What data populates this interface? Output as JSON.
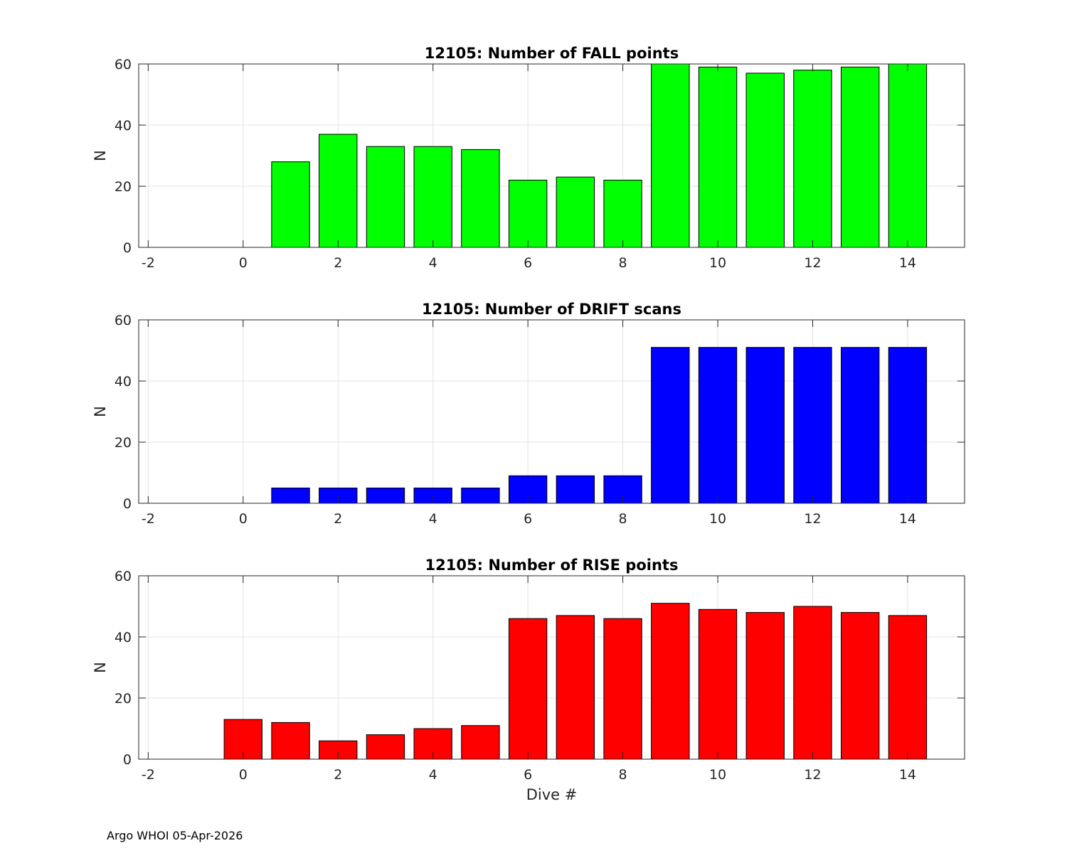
{
  "chart_data": [
    {
      "type": "bar",
      "title": "12105: Number of FALL points",
      "xlabel": "",
      "ylabel": "N",
      "x": [
        1,
        2,
        3,
        4,
        5,
        6,
        7,
        8,
        9,
        10,
        11,
        12,
        13,
        14
      ],
      "values": [
        28,
        37,
        33,
        33,
        32,
        22,
        23,
        22,
        60,
        59,
        57,
        58,
        59,
        60
      ],
      "color": "#00ff00",
      "xlim": [
        -2.2,
        15.2
      ],
      "ylim": [
        0,
        60
      ],
      "xticks": [
        -2,
        0,
        2,
        4,
        6,
        8,
        10,
        12,
        14
      ],
      "yticks": [
        0,
        20,
        40,
        60
      ],
      "grid": true
    },
    {
      "type": "bar",
      "title": "12105: Number of DRIFT scans",
      "xlabel": "",
      "ylabel": "N",
      "x": [
        1,
        2,
        3,
        4,
        5,
        6,
        7,
        8,
        9,
        10,
        11,
        12,
        13,
        14
      ],
      "values": [
        5,
        5,
        5,
        5,
        5,
        9,
        9,
        9,
        51,
        51,
        51,
        51,
        51,
        51
      ],
      "color": "#0000ff",
      "xlim": [
        -2.2,
        15.2
      ],
      "ylim": [
        0,
        60
      ],
      "xticks": [
        -2,
        0,
        2,
        4,
        6,
        8,
        10,
        12,
        14
      ],
      "yticks": [
        0,
        20,
        40,
        60
      ],
      "grid": true
    },
    {
      "type": "bar",
      "title": "12105: Number of RISE points",
      "xlabel": "Dive #",
      "ylabel": "N",
      "x": [
        0,
        1,
        2,
        3,
        4,
        5,
        6,
        7,
        8,
        9,
        10,
        11,
        12,
        13,
        14
      ],
      "values": [
        13,
        12,
        6,
        8,
        10,
        11,
        46,
        47,
        46,
        51,
        49,
        48,
        50,
        48,
        47
      ],
      "color": "#ff0000",
      "xlim": [
        -2.2,
        15.2
      ],
      "ylim": [
        0,
        60
      ],
      "xticks": [
        -2,
        0,
        2,
        4,
        6,
        8,
        10,
        12,
        14
      ],
      "yticks": [
        0,
        20,
        40,
        60
      ],
      "grid": true
    }
  ],
  "footer": "Argo WHOI 05-Apr-2026"
}
